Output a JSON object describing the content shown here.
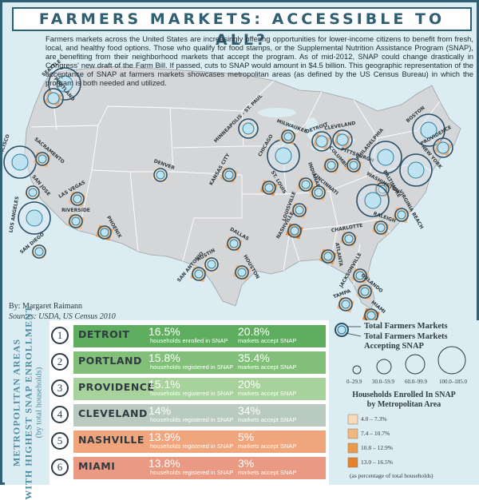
{
  "title": "FARMERS MARKETS: ACCESSIBLE TO ALL?",
  "intro": "Farmers markets across the United States are increasingly offering opportunities for lower-income citizens to benefit from fresh, local, and healthy food options. Those who qualify for food stamps, or the Supplemental Nutrition Assistance Program (SNAP), are benefiting from their neighborhood markets that accept the program. As of mid-2012, SNAP could change drastically in Congress' new draft of the Farm Bill. If passed, cuts to SNAP would amount in $4.5 billion. This geographic representation of the acceptance of SNAP at farmers markets showcases metropolitan areas (as defined by the US Census Bureau) in which the program is both needed and utilized.",
  "credit": {
    "author": "By: Margaret Raimann",
    "sources": "Sources: USDA, US Census 2010"
  },
  "colors": {
    "border": "#2f5f73",
    "land": "#d6d6d6",
    "bg": "#dcecf3",
    "ring": "#2b7fa3",
    "snap_1": "#f7dbb8",
    "snap_2": "#f2b77c",
    "snap_3": "#eb9a4c",
    "snap_4": "#e6822a"
  },
  "cities": [
    {
      "name": "SEATTLE",
      "markets": "large",
      "snap_class": 3
    },
    {
      "name": "PORTLAND",
      "markets": "medium",
      "snap_class": 4
    },
    {
      "name": "SAN FRANCISCO",
      "markets": "large",
      "snap_class": 1
    },
    {
      "name": "SACRAMENTO",
      "markets": "small",
      "snap_class": 2
    },
    {
      "name": "SAN JOSE",
      "markets": "small",
      "snap_class": 1
    },
    {
      "name": "LOS ANGELES",
      "markets": "large",
      "snap_class": 2
    },
    {
      "name": "SAN DIEGO",
      "markets": "small",
      "snap_class": 1
    },
    {
      "name": "RIVERSIDE",
      "markets": "small",
      "snap_class": 2
    },
    {
      "name": "LAS VEGAS",
      "markets": "small",
      "snap_class": 2
    },
    {
      "name": "PHOENIX",
      "markets": "small",
      "snap_class": 3
    },
    {
      "name": "DENVER",
      "markets": "small",
      "snap_class": 1
    },
    {
      "name": "MINNEAPOLIS - ST. PAUL",
      "markets": "medium",
      "snap_class": 1
    },
    {
      "name": "KANSAS CITY",
      "markets": "small",
      "snap_class": 2
    },
    {
      "name": "ST. LOUIS",
      "markets": "small",
      "snap_class": 3
    },
    {
      "name": "DALLAS",
      "markets": "small",
      "snap_class": 2
    },
    {
      "name": "SAN ANTONIO",
      "markets": "small",
      "snap_class": 2
    },
    {
      "name": "AUSTIN",
      "markets": "small",
      "snap_class": 1
    },
    {
      "name": "HOUSTON",
      "markets": "small",
      "snap_class": 2
    },
    {
      "name": "CHICAGO",
      "markets": "large",
      "snap_class": 2
    },
    {
      "name": "MILWAUKEE",
      "markets": "small",
      "snap_class": 2
    },
    {
      "name": "DETROIT",
      "markets": "medium",
      "snap_class": 4
    },
    {
      "name": "CLEVELAND",
      "markets": "medium",
      "snap_class": 4
    },
    {
      "name": "INDIANAPOLIS",
      "markets": "small",
      "snap_class": 2
    },
    {
      "name": "COLUMBUS",
      "markets": "small",
      "snap_class": 2
    },
    {
      "name": "CINCINNATI",
      "markets": "small",
      "snap_class": 2
    },
    {
      "name": "LOUISVILLE",
      "markets": "small",
      "snap_class": 2
    },
    {
      "name": "NASHVILLE",
      "markets": "small",
      "snap_class": 4
    },
    {
      "name": "PITTSBURGH",
      "markets": "small",
      "snap_class": 2
    },
    {
      "name": "PHILADELPHIA",
      "markets": "large",
      "snap_class": 2
    },
    {
      "name": "NEW YORK",
      "markets": "large",
      "snap_class": 2
    },
    {
      "name": "BOSTON",
      "markets": "large",
      "snap_class": 2
    },
    {
      "name": "PROVIDENCE",
      "markets": "medium",
      "snap_class": 4
    },
    {
      "name": "BALTIMORE",
      "markets": "small",
      "snap_class": 2
    },
    {
      "name": "WASHINGTON",
      "markets": "large",
      "snap_class": 2
    },
    {
      "name": "VIRGINIA BEACH",
      "markets": "small",
      "snap_class": 2
    },
    {
      "name": "RALEIGH",
      "markets": "small",
      "snap_class": 2
    },
    {
      "name": "CHARLOTTE",
      "markets": "small",
      "snap_class": 2
    },
    {
      "name": "ATLANTA",
      "markets": "small",
      "snap_class": 3
    },
    {
      "name": "JACKSONVILLE",
      "markets": "small",
      "snap_class": 2
    },
    {
      "name": "ORLANDO",
      "markets": "small",
      "snap_class": 2
    },
    {
      "name": "TAMPA",
      "markets": "small",
      "snap_class": 2
    },
    {
      "name": "MIAMI",
      "markets": "small",
      "snap_class": 4
    }
  ],
  "ranking": {
    "label_line1": "METROPOLITAN AREAS",
    "label_line2": "WITH HIGHEST SNAP ENROLLMENT",
    "label_line3": "(by total households)",
    "rows": [
      {
        "rank": "1",
        "city": "DETROIT",
        "pct": "16.5%",
        "pct_label": "households enrolled in SNAP",
        "markets": "20.8%",
        "markets_label": "markets accept SNAP",
        "color": "#5fae5f"
      },
      {
        "rank": "2",
        "city": "PORTLAND",
        "pct": "15.8%",
        "pct_label": "households registered in SNAP",
        "markets": "35.4%",
        "markets_label": "markets accept SNAP",
        "color": "#82c07a"
      },
      {
        "rank": "3",
        "city": "PROVIDENCE",
        "pct": "15.1%",
        "pct_label": "households registered in SNAP",
        "markets": "20%",
        "markets_label": "markets accept SNAP",
        "color": "#a8d29c"
      },
      {
        "rank": "4",
        "city": "CLEVELAND",
        "pct": "14%",
        "pct_label": "households registered in SNAP",
        "markets": "34%",
        "markets_label": "markets accept SNAP",
        "color": "#b9cbc0"
      },
      {
        "rank": "5",
        "city": "NASHVILLE",
        "pct": "13.9%",
        "pct_label": "households registered in SNAP",
        "markets": "5%",
        "markets_label": "markets accept SNAP",
        "color": "#f0a57d"
      },
      {
        "rank": "6",
        "city": "MIAMI",
        "pct": "13.8%",
        "pct_label": "households registered in SNAP",
        "markets": "3%",
        "markets_label": "markets accept SNAP",
        "color": "#ea9a82"
      }
    ]
  },
  "legend": {
    "total_markets": "Total Farmers Markets",
    "accepting_line1": "Total Farmers Markets",
    "accepting_line2": "Accepting SNAP",
    "size_labels": [
      "0–29.9",
      "30.0–59.9",
      "60.0–99.9",
      "100.0–185.0"
    ],
    "snap_title_line1": "Households Enrolled In SNAP",
    "snap_title_line2": "by Metropolitan Area",
    "snap_bins": [
      {
        "label": "4.0 – 7.3%",
        "color": "#f7dbb8"
      },
      {
        "label": "7.4 – 10.7%",
        "color": "#f2b77c"
      },
      {
        "label": "10.8 – 12.9%",
        "color": "#eb9a4c"
      },
      {
        "label": "13.0 – 16.5%",
        "color": "#e6822a"
      }
    ],
    "snap_note": "(as percentage of total households)"
  }
}
